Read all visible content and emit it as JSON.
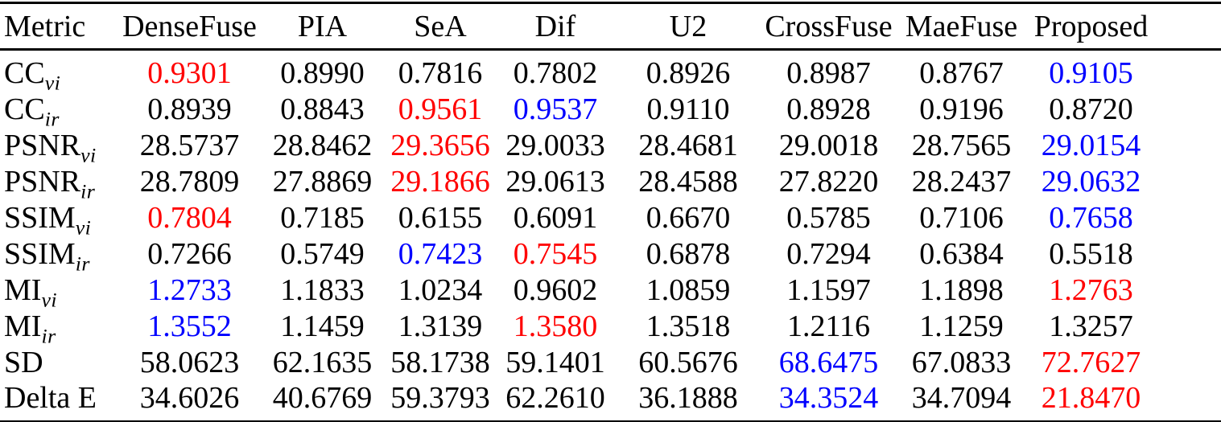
{
  "palette": {
    "red": "#ff0000",
    "blue": "#0000ff",
    "black": "#000000",
    "rule": "#000000",
    "background": "#ffffff"
  },
  "table": {
    "columns": [
      "Metric",
      "DenseFuse",
      "PIA",
      "SeA",
      "Dif",
      "U2",
      "CrossFuse",
      "MaeFuse",
      "Proposed"
    ],
    "rows": [
      {
        "metric": "CC",
        "subscript": "vi",
        "values": [
          "0.9301",
          "0.8990",
          "0.7816",
          "0.7802",
          "0.8926",
          "0.8987",
          "0.8767",
          "0.9105"
        ],
        "colors": [
          "red",
          "black",
          "black",
          "black",
          "black",
          "black",
          "black",
          "blue"
        ]
      },
      {
        "metric": "CC",
        "subscript": "ir",
        "values": [
          "0.8939",
          "0.8843",
          "0.9561",
          "0.9537",
          "0.9110",
          "0.8928",
          "0.9196",
          "0.8720"
        ],
        "colors": [
          "black",
          "black",
          "red",
          "blue",
          "black",
          "black",
          "black",
          "black"
        ]
      },
      {
        "metric": "PSNR",
        "subscript": "vi",
        "values": [
          "28.5737",
          "28.8462",
          "29.3656",
          "29.0033",
          "28.4681",
          "29.0018",
          "28.7565",
          "29.0154"
        ],
        "colors": [
          "black",
          "black",
          "red",
          "black",
          "black",
          "black",
          "black",
          "blue"
        ]
      },
      {
        "metric": "PSNR",
        "subscript": "ir",
        "values": [
          "28.7809",
          "27.8869",
          "29.1866",
          "29.0613",
          "28.4588",
          "27.8220",
          "28.2437",
          "29.0632"
        ],
        "colors": [
          "black",
          "black",
          "red",
          "black",
          "black",
          "black",
          "black",
          "blue"
        ]
      },
      {
        "metric": "SSIM",
        "subscript": "vi",
        "values": [
          "0.7804",
          "0.7185",
          "0.6155",
          "0.6091",
          "0.6670",
          "0.5785",
          "0.7106",
          "0.7658"
        ],
        "colors": [
          "red",
          "black",
          "black",
          "black",
          "black",
          "black",
          "black",
          "blue"
        ]
      },
      {
        "metric": "SSIM",
        "subscript": "ir",
        "values": [
          "0.7266",
          "0.5749",
          "0.7423",
          "0.7545",
          "0.6878",
          "0.7294",
          "0.6384",
          "0.5518"
        ],
        "colors": [
          "black",
          "black",
          "blue",
          "red",
          "black",
          "black",
          "black",
          "black"
        ]
      },
      {
        "metric": "MI",
        "subscript": "vi",
        "values": [
          "1.2733",
          "1.1833",
          "1.0234",
          "0.9602",
          "1.0859",
          "1.1597",
          "1.1898",
          "1.2763"
        ],
        "colors": [
          "blue",
          "black",
          "black",
          "black",
          "black",
          "black",
          "black",
          "red"
        ]
      },
      {
        "metric": "MI",
        "subscript": "ir",
        "values": [
          "1.3552",
          "1.1459",
          "1.3139",
          "1.3580",
          "1.3518",
          "1.2116",
          "1.1259",
          "1.3257"
        ],
        "colors": [
          "blue",
          "black",
          "black",
          "red",
          "black",
          "black",
          "black",
          "black"
        ]
      },
      {
        "metric": "SD",
        "subscript": "",
        "values": [
          "58.0623",
          "62.1635",
          "58.1738",
          "59.1401",
          "60.5676",
          "68.6475",
          "67.0833",
          "72.7627"
        ],
        "colors": [
          "black",
          "black",
          "black",
          "black",
          "black",
          "blue",
          "black",
          "red"
        ]
      },
      {
        "metric": "Delta E",
        "subscript": "",
        "values": [
          "34.6026",
          "40.6769",
          "59.3793",
          "62.2610",
          "36.1888",
          "34.3524",
          "34.7094",
          "21.8470"
        ],
        "colors": [
          "black",
          "black",
          "black",
          "black",
          "black",
          "blue",
          "black",
          "red"
        ]
      }
    ]
  }
}
